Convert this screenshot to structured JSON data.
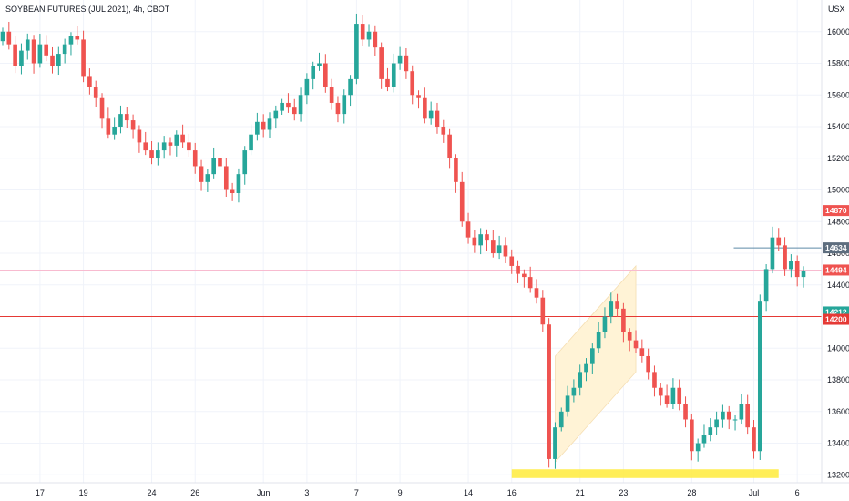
{
  "title": "SOYBEAN FUTURES (JUL 2021), 4h, CBOT",
  "currency_label": "USX",
  "colors": {
    "up": "#26a69a",
    "down": "#ef5350",
    "grid": "#f0f3fa",
    "red_line": "#e53935",
    "pink_line": "#f8bbd0",
    "teal_line": "#26a69a",
    "highlight": "#ffeb3b",
    "channel": "#fff3d6",
    "stop_zone": "#f8c8c8",
    "target_zone": "#cfe8e4"
  },
  "chart_data": {
    "type": "candlestick",
    "ylim": [
      13150,
      16200
    ],
    "y_ticks": [
      13200,
      13400,
      13600,
      13800,
      14000,
      14200,
      14400,
      14600,
      14800,
      15000,
      15200,
      15400,
      15600,
      15800,
      16000
    ],
    "x_labels": [
      {
        "label": "17",
        "bar": 6
      },
      {
        "label": "19",
        "bar": 13
      },
      {
        "label": "24",
        "bar": 24
      },
      {
        "label": "26",
        "bar": 31
      },
      {
        "label": "Jun",
        "bar": 42
      },
      {
        "label": "3",
        "bar": 49
      },
      {
        "label": "7",
        "bar": 57
      },
      {
        "label": "9",
        "bar": 64
      },
      {
        "label": "14",
        "bar": 75
      },
      {
        "label": "16",
        "bar": 82
      },
      {
        "label": "21",
        "bar": 93
      },
      {
        "label": "23",
        "bar": 100
      },
      {
        "label": "28",
        "bar": 111
      },
      {
        "label": "Jul",
        "bar": 121
      },
      {
        "label": "6",
        "bar": 128
      }
    ],
    "closes": [
      16000,
      15920,
      15780,
      15880,
      15950,
      15800,
      15920,
      15850,
      15780,
      15860,
      15920,
      15970,
      15950,
      15720,
      15650,
      15580,
      15450,
      15350,
      15400,
      15480,
      15440,
      15380,
      15300,
      15250,
      15200,
      15250,
      15300,
      15280,
      15350,
      15300,
      15250,
      15150,
      15050,
      15100,
      15200,
      15150,
      15000,
      14980,
      15100,
      15250,
      15350,
      15430,
      15380,
      15450,
      15500,
      15550,
      15520,
      15480,
      15600,
      15700,
      15780,
      15800,
      15650,
      15550,
      15480,
      15600,
      15700,
      16050,
      15950,
      16000,
      15900,
      15700,
      15650,
      15800,
      15850,
      15750,
      15600,
      15580,
      15450,
      15500,
      15400,
      15350,
      15200,
      15050,
      14800,
      14700,
      14650,
      14720,
      14680,
      14600,
      14650,
      14580,
      14520,
      14470,
      14450,
      14380,
      14320,
      14150,
      13300,
      13500,
      13600,
      13700,
      13750,
      13850,
      13900,
      14000,
      14100,
      14200,
      14300,
      14250,
      14100,
      14050,
      14000,
      13950,
      13850,
      13750,
      13700,
      13650,
      13750,
      13650,
      13550,
      13350,
      13400,
      13450,
      13500,
      13550,
      13600,
      13550,
      13550,
      13650,
      13500,
      13350,
      14300,
      14500,
      14700,
      14650,
      14500,
      14550,
      14450,
      14490
    ]
  },
  "price_tags": [
    {
      "label": "14870",
      "value": 14870,
      "color": "#ef5350"
    },
    {
      "label": "14634",
      "value": 14634,
      "color": "#5d6d7e"
    },
    {
      "label": "14494",
      "value": 14494,
      "color": "#ef5350"
    },
    {
      "label": "14212",
      "value": 14212,
      "color": "#26a69a"
    },
    {
      "label": "14200",
      "value": 14200,
      "color": "#e53935"
    }
  ]
}
